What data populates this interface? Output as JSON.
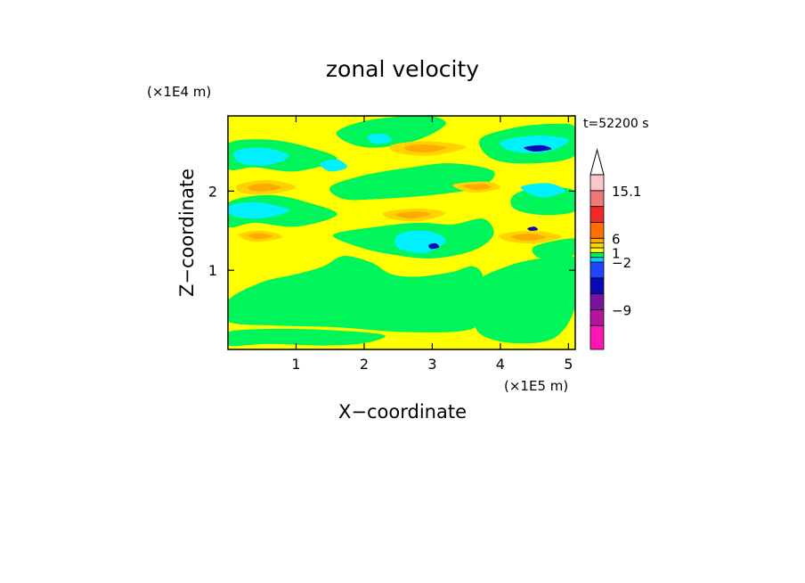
{
  "chart_data": {
    "type": "heatmap",
    "title": "zonal velocity",
    "xlabel": "X−coordinate",
    "ylabel": "Z−coordinate",
    "x_unit_label": "(×1E5 m)",
    "y_unit_label": "(×1E4 m)",
    "time_label": "t=52200 s",
    "xlim": [
      0,
      5.1
    ],
    "ylim": [
      0,
      2.95
    ],
    "x_ticks": [
      1,
      2,
      3,
      4,
      5
    ],
    "y_ticks": [
      1,
      2
    ],
    "grid": false,
    "colorbar": {
      "placement": "right",
      "labels": [
        "15.1",
        "6",
        "1",
        "−2",
        "−9"
      ],
      "levels": [
        {
          "color": "#ff14b4"
        },
        {
          "color": "#b4149b"
        },
        {
          "color": "#7a14a0"
        },
        {
          "color": "#0a0ab4"
        },
        {
          "color": "#1e46ff"
        },
        {
          "color": "#00d2ff"
        },
        {
          "color": "#00f55a"
        },
        {
          "color": "#ffff00"
        },
        {
          "color": "#ffd200"
        },
        {
          "color": "#ffaa00"
        },
        {
          "color": "#ff6e00"
        },
        {
          "color": "#f02828"
        },
        {
          "color": "#f07878"
        },
        {
          "color": "#fac8c8"
        }
      ]
    },
    "field_colors": {
      "background": "#ffff00",
      "weak_negative": "#00f55a",
      "moderate_negative": "#00f0ff",
      "strong_negative": "#0a0ab4",
      "weak_positive": "#ffd200",
      "moderate_positive": "#ffaa00"
    },
    "regions": {
      "green": [
        [
          [
            0,
            0.62
          ],
          [
            0.5,
            0.85
          ],
          [
            1.0,
            0.95
          ],
          [
            1.4,
            1.05
          ],
          [
            1.7,
            1.18
          ],
          [
            2.1,
            1.1
          ],
          [
            2.4,
            0.95
          ],
          [
            2.8,
            0.92
          ],
          [
            3.3,
            0.98
          ],
          [
            3.6,
            1.05
          ],
          [
            3.75,
            0.9
          ],
          [
            3.7,
            0.5
          ],
          [
            3.55,
            0.25
          ],
          [
            2.6,
            0.22
          ],
          [
            1.6,
            0.28
          ],
          [
            0.8,
            0.3
          ],
          [
            0,
            0.35
          ]
        ],
        [
          [
            0,
            0.05
          ],
          [
            0.6,
            0.07
          ],
          [
            1.4,
            0.05
          ],
          [
            2.0,
            0.08
          ],
          [
            2.3,
            0.18
          ],
          [
            1.6,
            0.24
          ],
          [
            0.7,
            0.26
          ],
          [
            0,
            0.22
          ]
        ],
        [
          [
            3.65,
            0.85
          ],
          [
            4.1,
            1.05
          ],
          [
            4.6,
            1.15
          ],
          [
            5.1,
            1.15
          ],
          [
            5.1,
            0.55
          ],
          [
            4.8,
            0.15
          ],
          [
            4.2,
            0.08
          ],
          [
            3.7,
            0.2
          ],
          [
            3.6,
            0.5
          ]
        ],
        [
          [
            1.55,
            1.45
          ],
          [
            2.2,
            1.55
          ],
          [
            2.8,
            1.6
          ],
          [
            3.3,
            1.58
          ],
          [
            3.75,
            1.65
          ],
          [
            3.9,
            1.45
          ],
          [
            3.6,
            1.25
          ],
          [
            3.0,
            1.15
          ],
          [
            2.4,
            1.2
          ],
          [
            1.9,
            1.3
          ]
        ],
        [
          [
            0,
            1.85
          ],
          [
            0.6,
            1.95
          ],
          [
            1.2,
            1.85
          ],
          [
            1.6,
            1.7
          ],
          [
            1.0,
            1.55
          ],
          [
            0.4,
            1.6
          ],
          [
            0,
            1.55
          ]
        ],
        [
          [
            1.5,
            2.05
          ],
          [
            2.0,
            2.2
          ],
          [
            2.7,
            2.3
          ],
          [
            3.3,
            2.35
          ],
          [
            3.9,
            2.25
          ],
          [
            3.7,
            2.05
          ],
          [
            3.0,
            1.95
          ],
          [
            2.2,
            1.9
          ],
          [
            1.7,
            1.9
          ]
        ],
        [
          [
            0,
            2.6
          ],
          [
            0.6,
            2.65
          ],
          [
            1.2,
            2.55
          ],
          [
            1.6,
            2.4
          ],
          [
            1.0,
            2.25
          ],
          [
            0.4,
            2.3
          ],
          [
            0,
            2.28
          ]
        ],
        [
          [
            1.6,
            2.75
          ],
          [
            2.1,
            2.9
          ],
          [
            2.9,
            2.95
          ],
          [
            3.2,
            2.85
          ],
          [
            2.8,
            2.65
          ],
          [
            2.2,
            2.55
          ],
          [
            1.8,
            2.6
          ]
        ],
        [
          [
            3.7,
            2.65
          ],
          [
            4.2,
            2.8
          ],
          [
            4.8,
            2.85
          ],
          [
            5.1,
            2.8
          ],
          [
            5.1,
            2.45
          ],
          [
            4.5,
            2.35
          ],
          [
            3.9,
            2.4
          ]
        ],
        [
          [
            4.2,
            1.95
          ],
          [
            4.6,
            2.05
          ],
          [
            5.1,
            2.0
          ],
          [
            5.1,
            1.75
          ],
          [
            4.6,
            1.7
          ],
          [
            4.2,
            1.78
          ]
        ],
        [
          [
            4.5,
            1.3
          ],
          [
            5.1,
            1.4
          ],
          [
            5.1,
            1.2
          ],
          [
            4.6,
            1.15
          ]
        ]
      ],
      "cyan": [
        [
          [
            0.1,
            2.5
          ],
          [
            0.5,
            2.55
          ],
          [
            0.9,
            2.45
          ],
          [
            0.6,
            2.33
          ],
          [
            0.2,
            2.35
          ]
        ],
        [
          [
            0,
            1.8
          ],
          [
            0.4,
            1.86
          ],
          [
            0.9,
            1.76
          ],
          [
            0.5,
            1.66
          ],
          [
            0.1,
            1.68
          ]
        ],
        [
          [
            2.5,
            1.45
          ],
          [
            2.9,
            1.5
          ],
          [
            3.2,
            1.38
          ],
          [
            2.9,
            1.22
          ],
          [
            2.5,
            1.28
          ]
        ],
        [
          [
            4.0,
            2.62
          ],
          [
            4.5,
            2.7
          ],
          [
            5.0,
            2.65
          ],
          [
            4.7,
            2.5
          ],
          [
            4.2,
            2.5
          ]
        ],
        [
          [
            1.35,
            2.35
          ],
          [
            1.6,
            2.4
          ],
          [
            1.75,
            2.3
          ],
          [
            1.5,
            2.25
          ]
        ],
        [
          [
            4.3,
            2.05
          ],
          [
            4.7,
            2.1
          ],
          [
            4.95,
            2.0
          ],
          [
            4.6,
            1.92
          ]
        ],
        [
          [
            2.05,
            2.7
          ],
          [
            2.3,
            2.72
          ],
          [
            2.4,
            2.63
          ],
          [
            2.15,
            2.6
          ]
        ]
      ],
      "orange": [
        [
          [
            0.15,
            2.08
          ],
          [
            0.6,
            2.14
          ],
          [
            1.0,
            2.05
          ],
          [
            0.6,
            1.96
          ],
          [
            0.2,
            1.98
          ]
        ],
        [
          [
            2.4,
            2.58
          ],
          [
            2.9,
            2.63
          ],
          [
            3.5,
            2.56
          ],
          [
            3.0,
            2.45
          ],
          [
            2.5,
            2.48
          ]
        ],
        [
          [
            2.3,
            1.73
          ],
          [
            2.8,
            1.78
          ],
          [
            3.2,
            1.72
          ],
          [
            2.8,
            1.62
          ],
          [
            2.4,
            1.65
          ]
        ],
        [
          [
            3.3,
            2.08
          ],
          [
            3.8,
            2.12
          ],
          [
            4.0,
            2.04
          ],
          [
            3.6,
            1.98
          ]
        ],
        [
          [
            4.0,
            1.45
          ],
          [
            4.5,
            1.5
          ],
          [
            4.9,
            1.42
          ],
          [
            4.5,
            1.34
          ],
          [
            4.1,
            1.37
          ]
        ],
        [
          [
            0.15,
            1.45
          ],
          [
            0.5,
            1.5
          ],
          [
            0.8,
            1.42
          ],
          [
            0.4,
            1.36
          ]
        ]
      ],
      "dark_blue": [
        [
          [
            4.35,
            2.55
          ],
          [
            4.6,
            2.58
          ],
          [
            4.75,
            2.53
          ],
          [
            4.5,
            2.5
          ]
        ],
        [
          [
            2.95,
            1.32
          ],
          [
            3.05,
            1.34
          ],
          [
            3.1,
            1.29
          ],
          [
            2.98,
            1.27
          ]
        ],
        [
          [
            4.4,
            1.53
          ],
          [
            4.5,
            1.55
          ],
          [
            4.55,
            1.51
          ],
          [
            4.44,
            1.5
          ]
        ]
      ]
    }
  }
}
